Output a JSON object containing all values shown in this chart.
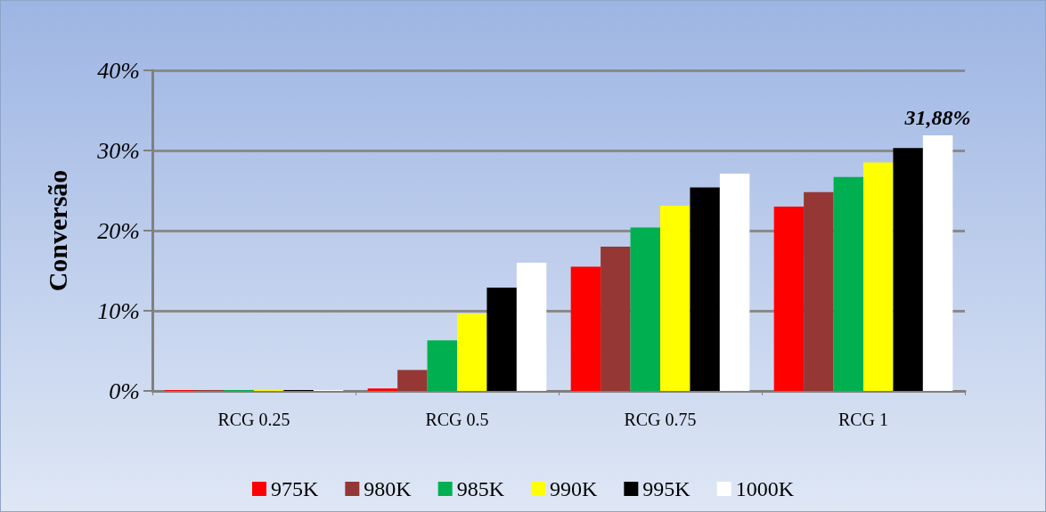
{
  "chart_data": {
    "type": "bar",
    "ylabel": "Conversão",
    "categories": [
      "RCG 0.25",
      "RCG 0.5",
      "RCG 0.75",
      "RCG 1"
    ],
    "series": [
      {
        "name": "975K",
        "color": "#ff0000",
        "values": [
          0.1,
          0.3,
          15.5,
          23.0
        ]
      },
      {
        "name": "980K",
        "color": "#953735",
        "values": [
          0.1,
          2.6,
          18.0,
          24.8
        ]
      },
      {
        "name": "985K",
        "color": "#00b050",
        "values": [
          0.1,
          6.3,
          20.4,
          26.7
        ]
      },
      {
        "name": "990K",
        "color": "#ffff00",
        "values": [
          0.1,
          9.6,
          23.1,
          28.5
        ]
      },
      {
        "name": "995K",
        "color": "#000000",
        "values": [
          0.1,
          12.9,
          25.4,
          30.3
        ]
      },
      {
        "name": "1000K",
        "color": "#ffffff",
        "values": [
          0.1,
          16.0,
          27.1,
          31.88
        ],
        "value_labels": [
          null,
          null,
          null,
          "31,88%"
        ]
      }
    ],
    "ylim": [
      0,
      40
    ],
    "yticks": [
      {
        "value": 0,
        "label": "0%"
      },
      {
        "value": 10,
        "label": "10%"
      },
      {
        "value": 20,
        "label": "20%"
      },
      {
        "value": 30,
        "label": "30%"
      },
      {
        "value": 40,
        "label": "40%"
      }
    ],
    "grid": "y",
    "legend": "bottom"
  }
}
